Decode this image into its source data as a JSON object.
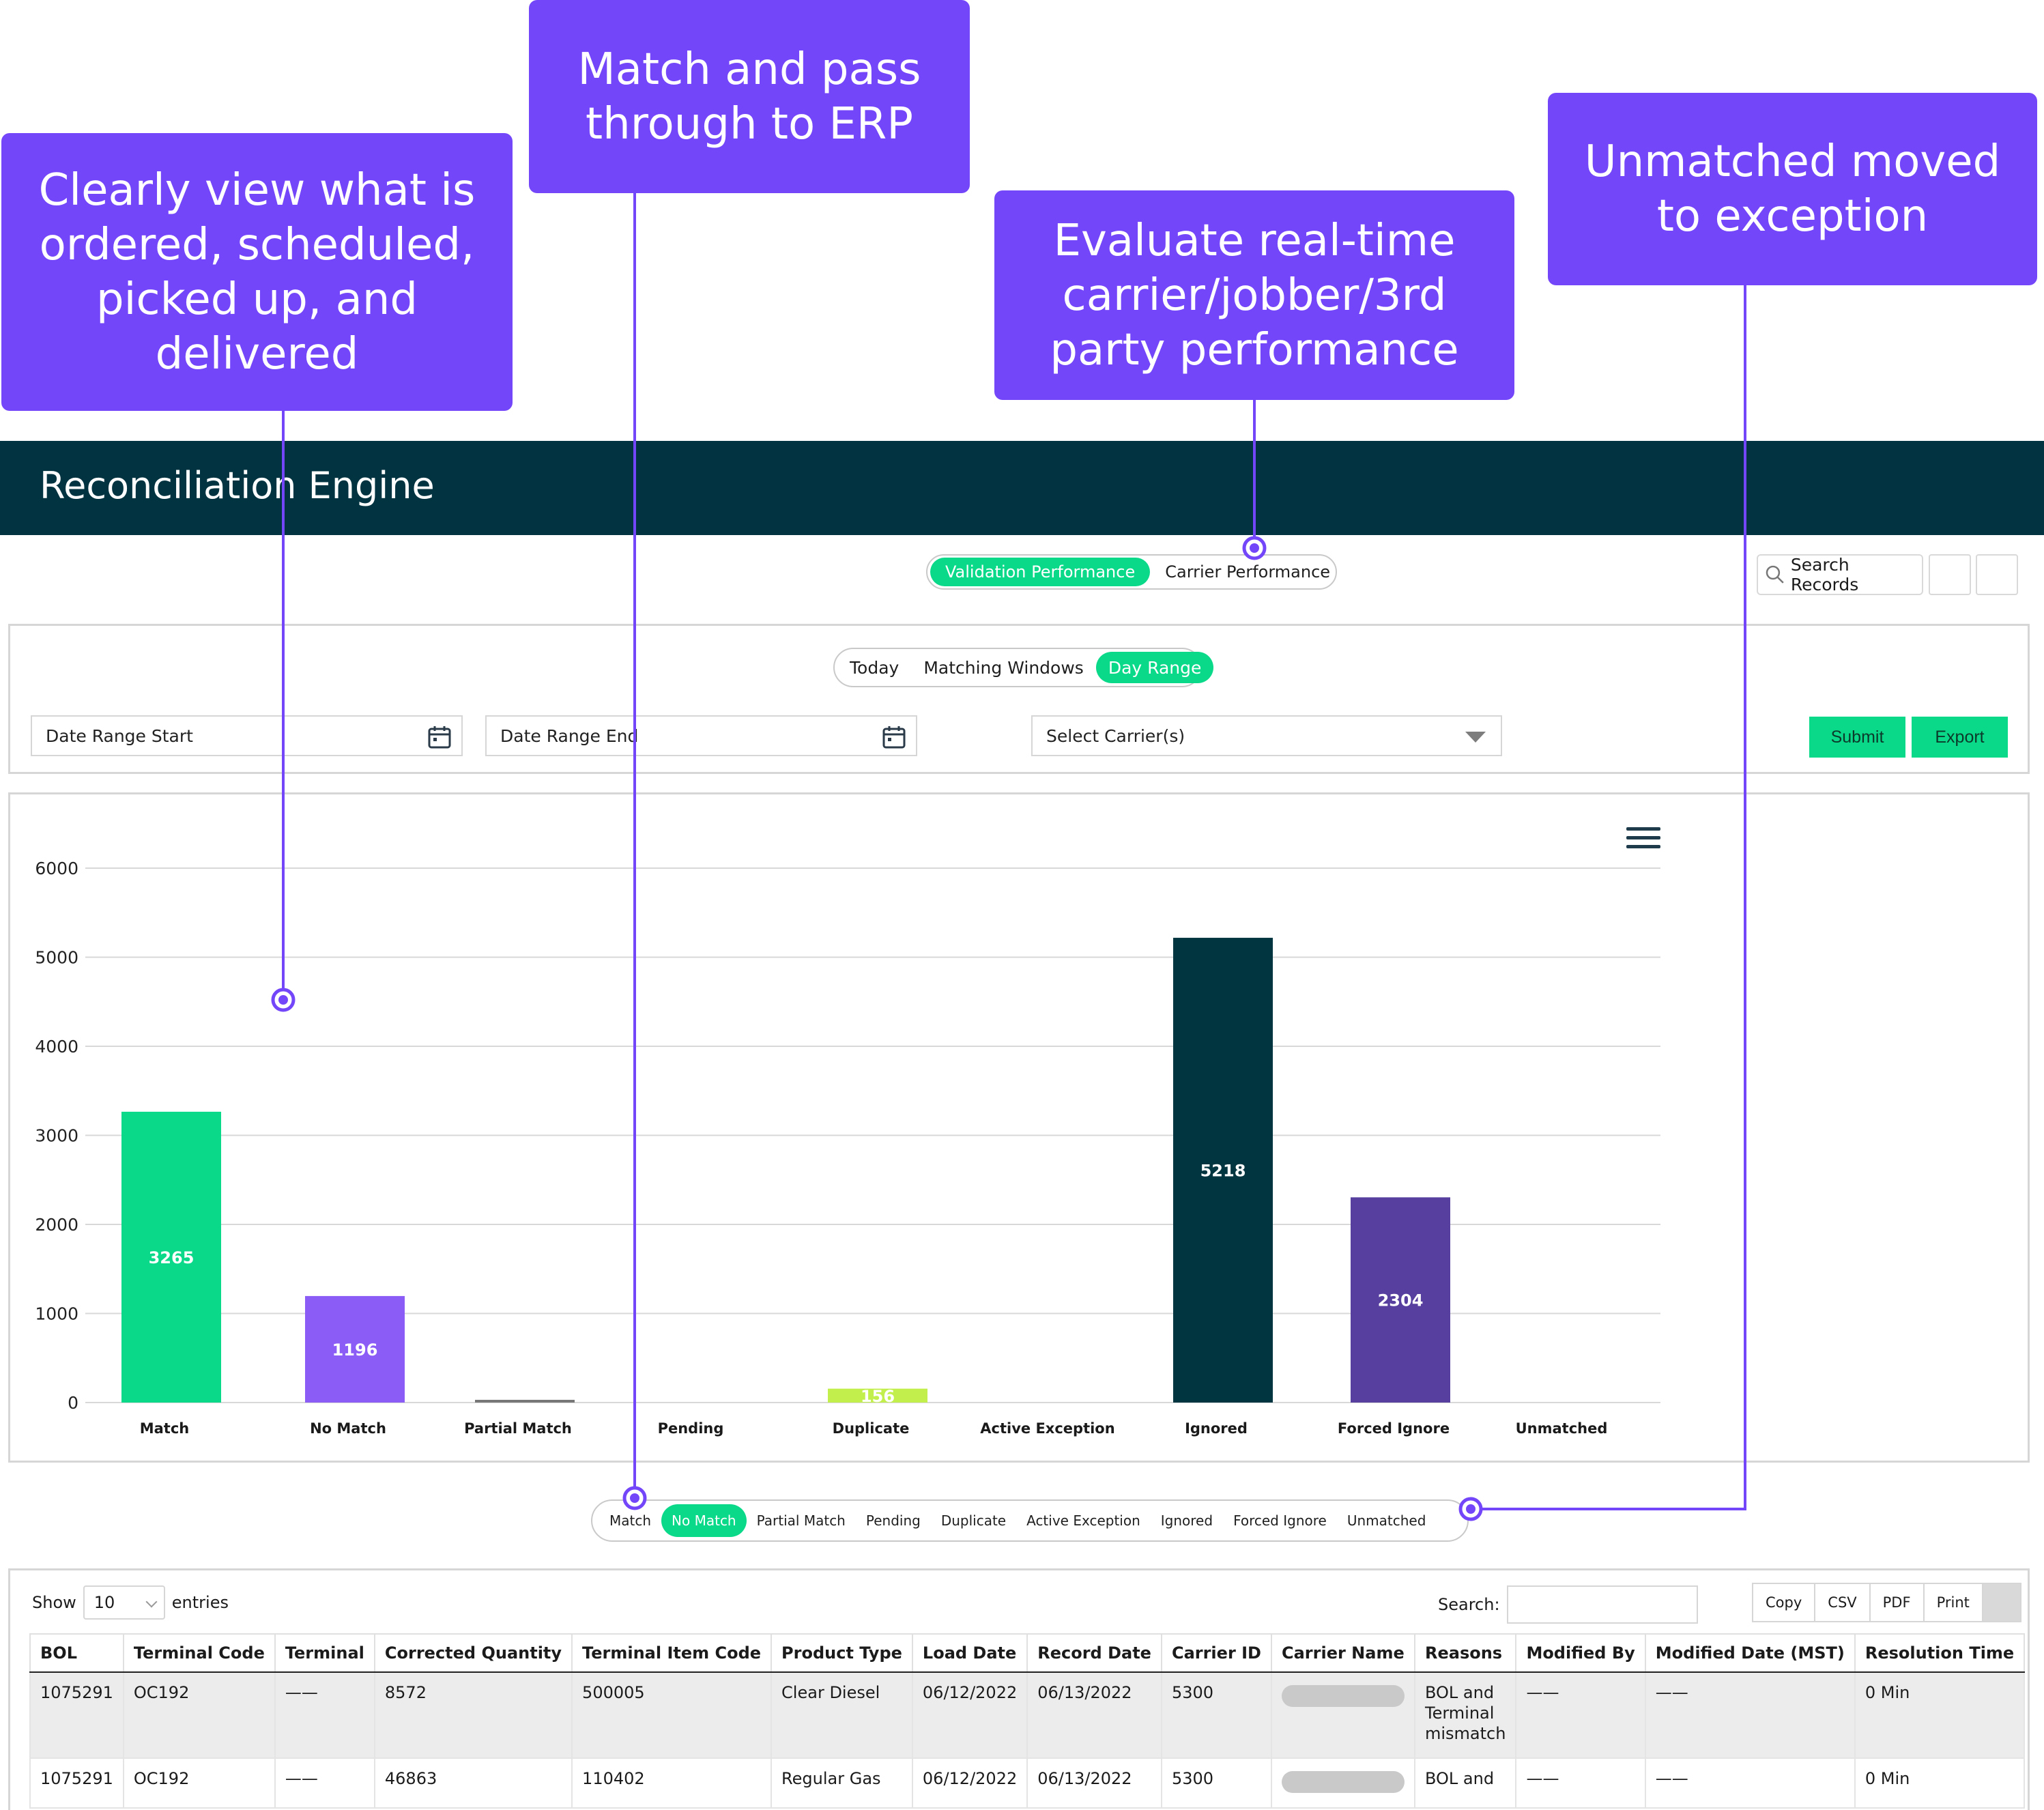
{
  "callouts": {
    "c1": "Clearly view what is\nordered, scheduled,\npicked up, and\ndelivered",
    "c2": "Match and pass\nthrough to ERP",
    "c3": "Evaluate real-time\ncarrier/jobber/3rd\nparty performance",
    "c4": "Unmatched moved\nto exception"
  },
  "app": {
    "title": "Reconciliation Engine"
  },
  "performance_tabs": [
    "Validation Performance",
    "Carrier Performance"
  ],
  "search_records": {
    "label": "Search Records",
    "icon": "search-icon"
  },
  "range_tabs": [
    "Today",
    "Matching Windows",
    "Day Range"
  ],
  "filters": {
    "date_start": "Date Range Start",
    "date_end": "Date Range End",
    "carrier": "Select Carrier(s)",
    "submit": "Submit",
    "export": "Export"
  },
  "colors": {
    "accent_green": "#0ad98a",
    "callout_purple": "#7446F9",
    "header_teal": "#013440"
  },
  "chart_data": {
    "type": "bar",
    "categories": [
      "Match",
      "No Match",
      "Partial Match",
      "Pending",
      "Duplicate",
      "Active Exception",
      "Ignored",
      "Forced Ignore",
      "Unmatched"
    ],
    "values": [
      3265,
      1196,
      30,
      0,
      156,
      0,
      5218,
      2304,
      0
    ],
    "data_labels": [
      "3265",
      "1196",
      "",
      "",
      "156",
      "",
      "5218",
      "2304",
      ""
    ],
    "colors": [
      "#0ad98a",
      "#8b5cf6",
      "#777777",
      "#cccccc",
      "#c3ef4d",
      "#cccccc",
      "#01353f",
      "#563f9f",
      "#cccccc"
    ],
    "yticks": [
      "0",
      "1000",
      "2000",
      "3000",
      "4000",
      "5000",
      "6000"
    ],
    "ylim": [
      0,
      6000
    ],
    "grid": true
  },
  "legend_tabs": [
    "Match",
    "No Match",
    "Partial Match",
    "Pending",
    "Duplicate",
    "Active Exception",
    "Ignored",
    "Forced Ignore",
    "Unmatched"
  ],
  "table": {
    "show_label": "Show",
    "entries_value": "10",
    "entries_label": "entries",
    "search_label": "Search:",
    "export_buttons": [
      "Copy",
      "CSV",
      "PDF",
      "Print"
    ],
    "columns": [
      "BOL",
      "Terminal Code",
      "Terminal",
      "Corrected Quantity",
      "Terminal Item Code",
      "Product Type",
      "Load Date",
      "Record Date",
      "Carrier ID",
      "Carrier Name",
      "Reasons",
      "Modified By",
      "Modified Date (MST)",
      "Resolution Time"
    ],
    "rows": [
      [
        "1075291",
        "OC192",
        "——",
        "8572",
        "500005",
        "Clear Diesel",
        "06/12/2022",
        "06/13/2022",
        "5300",
        "",
        "BOL and Terminal mismatch",
        "——",
        "——",
        "0 Min"
      ],
      [
        "1075291",
        "OC192",
        "——",
        "46863",
        "110402",
        "Regular Gas",
        "06/12/2022",
        "06/13/2022",
        "5300",
        "",
        "BOL and",
        "——",
        "——",
        "0 Min"
      ]
    ]
  }
}
